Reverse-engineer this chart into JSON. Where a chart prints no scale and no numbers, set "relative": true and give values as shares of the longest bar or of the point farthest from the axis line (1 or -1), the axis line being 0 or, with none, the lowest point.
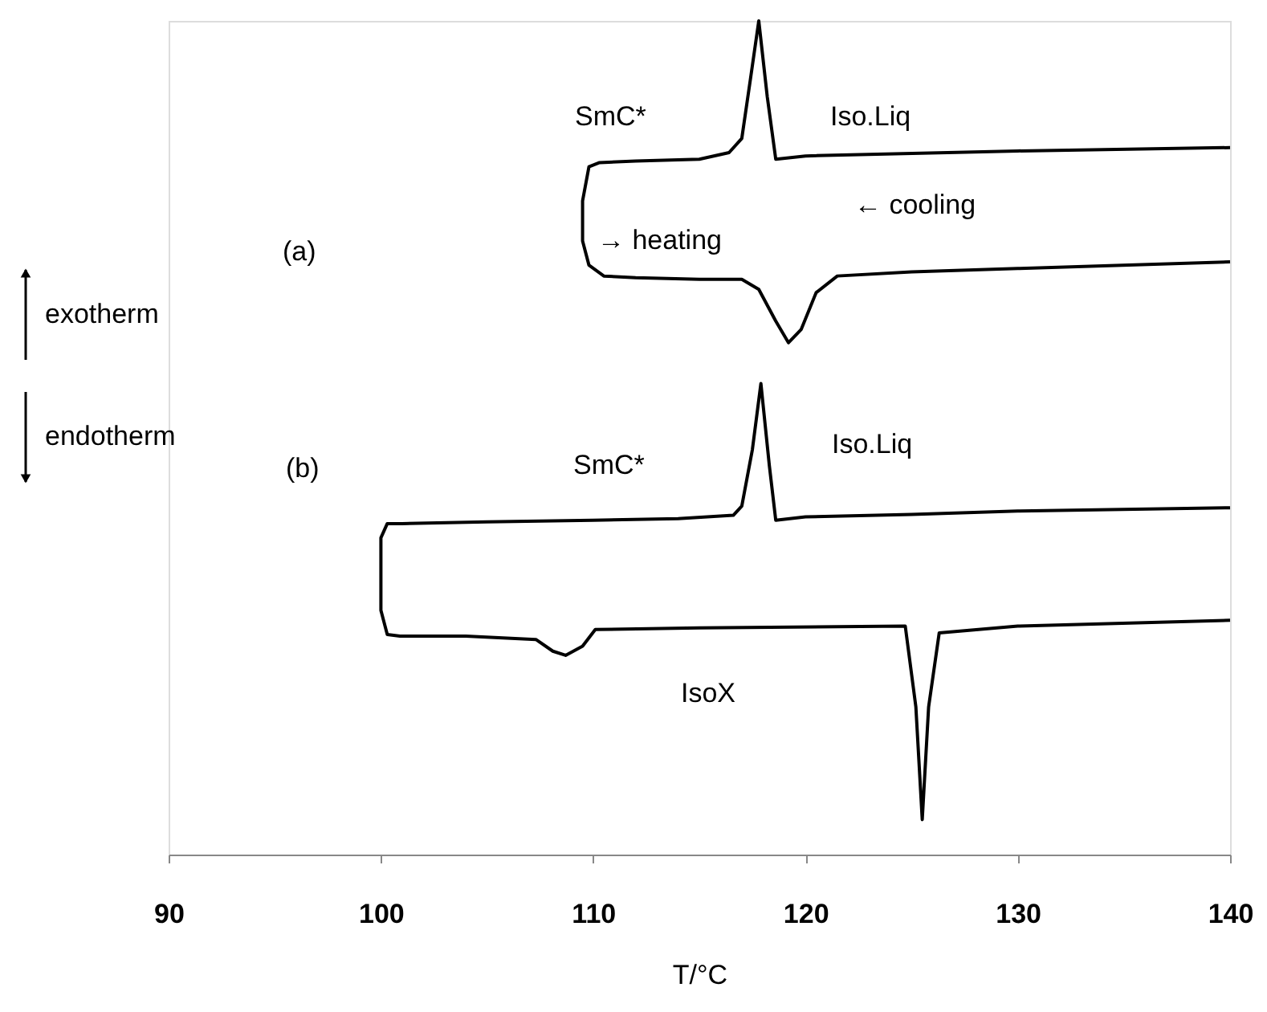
{
  "chart_data": {
    "type": "line",
    "relative": true,
    "xlabel": "T/°C",
    "xlim": [
      90,
      140
    ],
    "xticks": [
      90,
      100,
      110,
      120,
      130,
      140
    ],
    "tick_labels": "x",
    "grid": false,
    "legend": false,
    "marker": "none",
    "line_style": "solid",
    "series": [
      {
        "color": "#000000",
        "x": [
          140,
          130,
          120,
          118.6,
          118.2,
          117.8,
          117.4,
          117,
          116.4,
          115,
          112,
          110.3,
          109.8,
          109.5,
          109.5,
          109.8,
          110.5,
          112,
          115,
          117,
          117.8,
          118.6,
          119.2,
          119.8,
          120.5,
          121.5,
          125,
          130,
          140
        ],
        "values": [
          0.848,
          0.844,
          0.838,
          0.834,
          0.909,
          1.0,
          0.929,
          0.859,
          0.842,
          0.834,
          0.832,
          0.83,
          0.825,
          0.784,
          0.736,
          0.707,
          0.694,
          0.692,
          0.69,
          0.69,
          0.678,
          0.64,
          0.614,
          0.63,
          0.674,
          0.694,
          0.699,
          0.703,
          0.711
        ]
      },
      {
        "color": "#000000",
        "x": [
          140,
          130,
          125,
          120,
          118.6,
          118.3,
          117.9,
          117.5,
          117,
          116.6,
          114,
          110,
          105,
          101,
          100.3,
          100,
          100,
          100.3,
          100.9,
          104,
          107.3,
          108.1,
          108.7,
          109.5,
          110.1,
          115,
          124.7,
          125.2,
          125.5,
          125.8,
          126.3,
          130,
          140
        ],
        "values": [
          0.416,
          0.412,
          0.408,
          0.405,
          0.401,
          0.466,
          0.565,
          0.486,
          0.418,
          0.407,
          0.403,
          0.401,
          0.399,
          0.397,
          0.397,
          0.38,
          0.293,
          0.264,
          0.262,
          0.262,
          0.258,
          0.244,
          0.239,
          0.25,
          0.27,
          0.272,
          0.274,
          0.177,
          0.042,
          0.177,
          0.266,
          0.274,
          0.281
        ]
      }
    ],
    "annotations": [
      "(a)",
      "SmC*",
      "Iso.Liq",
      "→ heating",
      "← cooling",
      "exotherm",
      "endotherm",
      "(b)",
      "SmC*",
      "Iso.Liq",
      "IsoX"
    ]
  }
}
